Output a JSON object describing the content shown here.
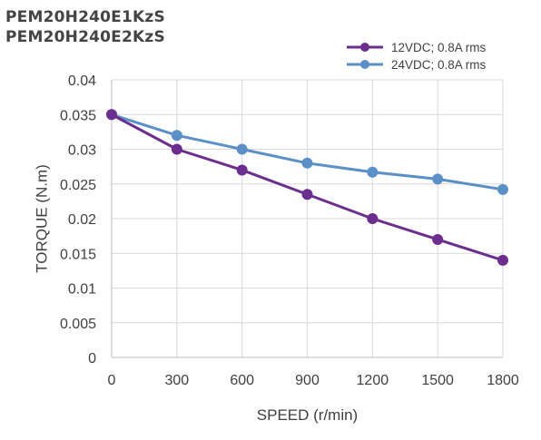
{
  "titles": [
    "PEM20H240E1KzS",
    "PEM20H240E2KzS"
  ],
  "chart_data": {
    "type": "line",
    "title": "PEM20H240E1KzS / PEM20H240E2KzS",
    "xlabel": "SPEED (r/min)",
    "ylabel": "TORQUE (N.m)",
    "x": [
      0,
      300,
      600,
      900,
      1200,
      1500,
      1800
    ],
    "x_tick_labels": [
      "0",
      "300",
      "600",
      "900",
      "1200",
      "1500",
      "1800"
    ],
    "y_tick_labels": [
      "0",
      "0.005",
      "0.01",
      "0.015",
      "0.02",
      "0.025",
      "0.03",
      "0.035",
      "0.04"
    ],
    "ylim": [
      0,
      0.04
    ],
    "grid": true,
    "legend_position": "top-right",
    "series": [
      {
        "name": "12VDC; 0.8A rms",
        "color": "#6b2d8e",
        "values": [
          0.035,
          0.03,
          0.027,
          0.0235,
          0.02,
          0.017,
          0.014
        ]
      },
      {
        "name": "24VDC; 0.8A rms",
        "color": "#5b8fc8",
        "values": [
          0.035,
          0.032,
          0.03,
          0.028,
          0.0267,
          0.0257,
          0.0242
        ]
      }
    ]
  }
}
